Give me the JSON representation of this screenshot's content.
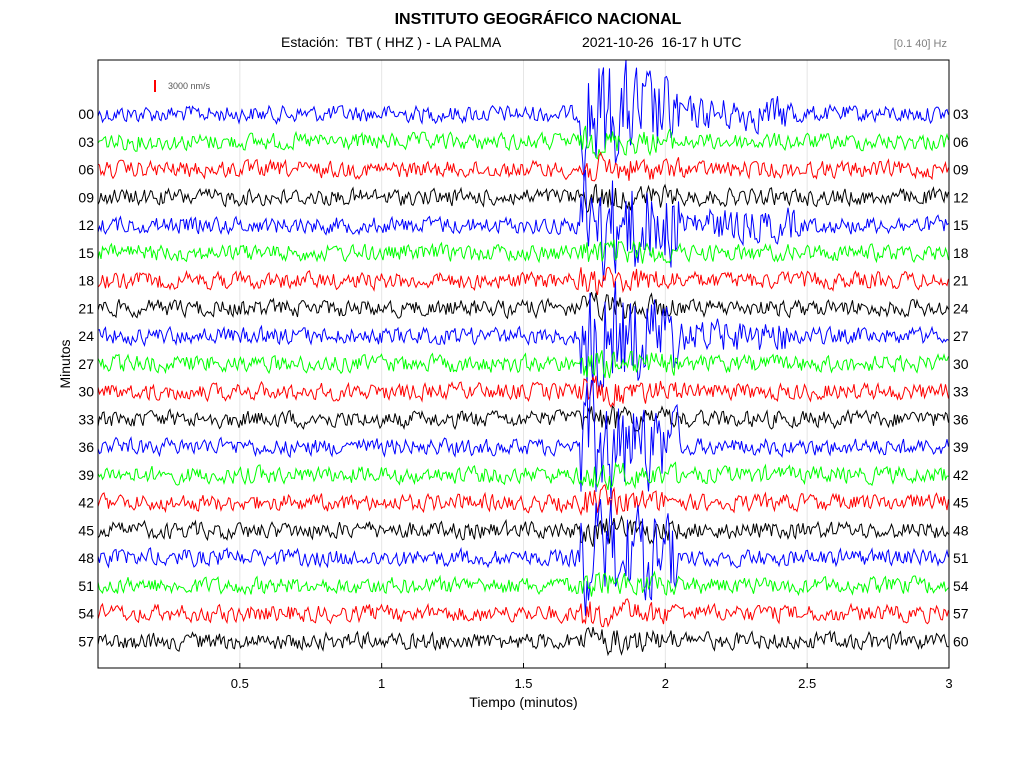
{
  "header": {
    "title": "INSTITUTO GEOGRÁFICO NACIONAL",
    "station": "Estación:  TBT ( HHZ ) - LA PALMA",
    "datetime": "2021-10-26  16-17 h UTC",
    "filter": "[0.1 40] Hz"
  },
  "chart_data": {
    "type": "line",
    "title": "INSTITUTO GEOGRÁFICO NACIONAL",
    "xlabel": "Tiempo (minutos)",
    "ylabel": "Minutos",
    "xlim": [
      0,
      3
    ],
    "x_ticks": [
      "0.5",
      "1",
      "1.5",
      "2",
      "2.5",
      "3"
    ],
    "x_tick_values": [
      0.5,
      1,
      1.5,
      2,
      2.5,
      3
    ],
    "left_labels": [
      "00",
      "03",
      "06",
      "09",
      "12",
      "15",
      "18",
      "21",
      "24",
      "27",
      "30",
      "33",
      "36",
      "39",
      "42",
      "45",
      "48",
      "51",
      "54",
      "57"
    ],
    "right_labels": [
      "03",
      "06",
      "09",
      "12",
      "15",
      "18",
      "21",
      "24",
      "27",
      "30",
      "33",
      "36",
      "39",
      "42",
      "45",
      "48",
      "51",
      "54",
      "57",
      "60"
    ],
    "scale_label": "3000 nm/s",
    "scale_color": "#ff0000",
    "trace_colors": [
      "#0000ff",
      "#00ff00",
      "#ff0000",
      "#000000"
    ],
    "event": {
      "start_minute": 1.7,
      "end_minute": 2.05,
      "trace_start": "00",
      "trace_end": "57"
    },
    "grid": true
  }
}
